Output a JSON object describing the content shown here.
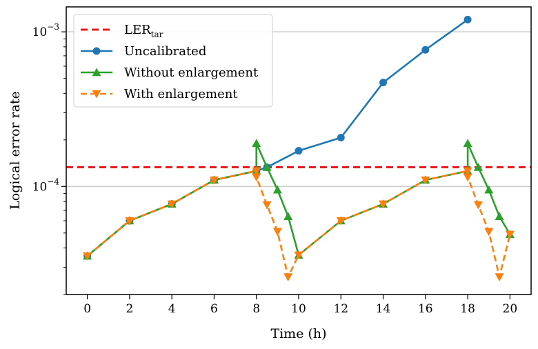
{
  "chart_data": {
    "type": "line",
    "title": "",
    "xlabel": "Time (h)",
    "ylabel": "Logical error rate",
    "xscale": "linear",
    "yscale": "log",
    "xlim": [
      -1,
      21
    ],
    "ylim": [
      2e-05,
      0.00145
    ],
    "xticks": [
      0,
      2,
      4,
      6,
      8,
      10,
      12,
      14,
      16,
      18,
      20
    ],
    "xtick_labels": [
      "0",
      "2",
      "4",
      "6",
      "8",
      "10",
      "12",
      "14",
      "16",
      "18",
      "20"
    ],
    "yticks": [
      0.0001,
      0.001
    ],
    "ytick_labels": [
      {
        "base": "10",
        "exp": "−4"
      },
      {
        "base": "10",
        "exp": "−3"
      }
    ],
    "grid": "horizontal major lines at decades",
    "legend_position": "top-left",
    "target": {
      "name": "LER",
      "subscript": "tar",
      "value": 0.000133,
      "color": "#e41a1c",
      "style": "dashed"
    },
    "series": [
      {
        "name": "Uncalibrated",
        "color": "#1f77b4",
        "marker": "circle",
        "style": "solid",
        "x": [
          0,
          2,
          4,
          6,
          8,
          8.5,
          10,
          12,
          14,
          16,
          18
        ],
        "y": [
          3.55e-05,
          6e-05,
          7.7e-05,
          0.00011,
          0.000126,
          0.000133,
          0.00017,
          0.000207,
          0.00047,
          0.000765,
          0.0012
        ]
      },
      {
        "name": "Without enlargement",
        "color": "#2ca02c",
        "marker": "triangle-up",
        "style": "solid",
        "x": [
          0,
          2,
          4,
          6,
          8,
          8,
          8.5,
          9,
          9.5,
          10,
          12,
          14,
          16,
          18,
          18,
          18.5,
          19,
          19.5,
          20
        ],
        "y": [
          3.55e-05,
          6e-05,
          7.7e-05,
          0.00011,
          0.000126,
          0.00019,
          0.000133,
          9.5e-05,
          6.4e-05,
          3.6e-05,
          6e-05,
          7.7e-05,
          0.00011,
          0.000126,
          0.00019,
          0.000133,
          9.5e-05,
          6.4e-05,
          4.9e-05
        ]
      },
      {
        "name": "With enlargement",
        "color": "#ff7f0e",
        "marker": "triangle-down",
        "style": "dashed",
        "x": [
          0,
          2,
          4,
          6,
          8,
          8,
          8.5,
          9,
          9.5,
          10,
          12,
          14,
          16,
          18,
          18,
          18.5,
          19,
          19.5,
          20
        ],
        "y": [
          3.55e-05,
          6e-05,
          7.7e-05,
          0.00011,
          0.000126,
          0.000115,
          7.6e-05,
          5.1e-05,
          2.6e-05,
          3.6e-05,
          6e-05,
          7.7e-05,
          0.00011,
          0.000126,
          0.000115,
          7.6e-05,
          5.1e-05,
          2.6e-05,
          4.9e-05
        ]
      }
    ]
  }
}
